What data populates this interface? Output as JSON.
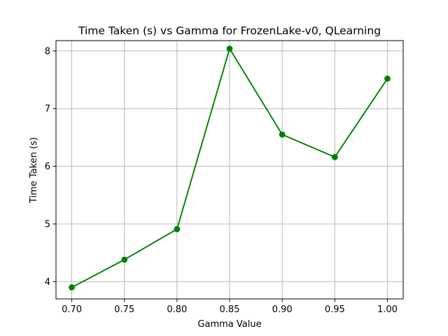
{
  "chart_data": {
    "type": "line",
    "title": "Time Taken (s) vs Gamma for FrozenLake-v0, QLearning",
    "xlabel": "Gamma Value",
    "ylabel": "Time Taken (s)",
    "x": [
      0.7,
      0.75,
      0.8,
      0.85,
      0.9,
      0.95,
      1.0
    ],
    "series": [
      {
        "values": [
          3.9,
          4.38,
          4.91,
          8.04,
          6.55,
          6.16,
          7.52
        ],
        "color": "#008000",
        "marker": "circle"
      }
    ],
    "xlim": [
      0.685,
      1.015
    ],
    "ylim": [
      3.7,
      8.18
    ],
    "xticks": [
      0.7,
      0.75,
      0.8,
      0.85,
      0.9,
      0.95,
      1.0
    ],
    "xtick_labels": [
      "0.70",
      "0.75",
      "0.80",
      "0.85",
      "0.90",
      "0.95",
      "1.00"
    ],
    "yticks": [
      4,
      5,
      6,
      7,
      8
    ],
    "ytick_labels": [
      "4",
      "5",
      "6",
      "7",
      "8"
    ],
    "grid": true,
    "grid_color": "#b0b0b0",
    "legend": "none"
  }
}
